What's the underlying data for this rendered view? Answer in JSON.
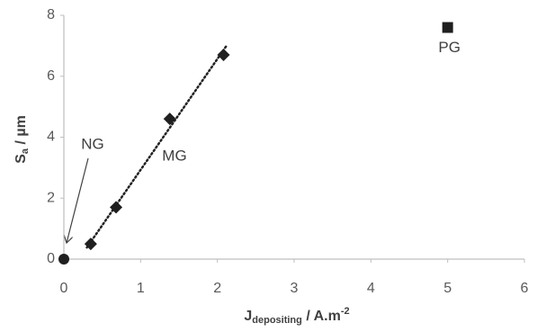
{
  "chart_data": {
    "type": "scatter",
    "x_label": {
      "main": "J",
      "sub": "depositing",
      "rest": " / A.m",
      "sup": "-2"
    },
    "y_label": {
      "main": "S",
      "sub": "a",
      "rest": " / µm"
    },
    "xlim": [
      0,
      6
    ],
    "xticks": [
      0,
      1,
      2,
      3,
      4,
      5,
      6
    ],
    "ylim": [
      0,
      8
    ],
    "yticks": [
      0,
      2,
      4,
      6,
      8
    ],
    "series": [
      {
        "name": "NG",
        "marker": "circle",
        "color": "#1f1f1f",
        "x": [
          0
        ],
        "values": [
          0
        ]
      },
      {
        "name": "MG",
        "marker": "diamond",
        "color": "#1f1f1f",
        "x": [
          0.35,
          0.68,
          1.38,
          2.08
        ],
        "values": [
          0.5,
          1.7,
          4.6,
          6.7
        ],
        "trendline": true
      },
      {
        "name": "PG",
        "marker": "square",
        "color": "#1f1f1f",
        "x": [
          5
        ],
        "values": [
          7.6
        ]
      }
    ]
  }
}
